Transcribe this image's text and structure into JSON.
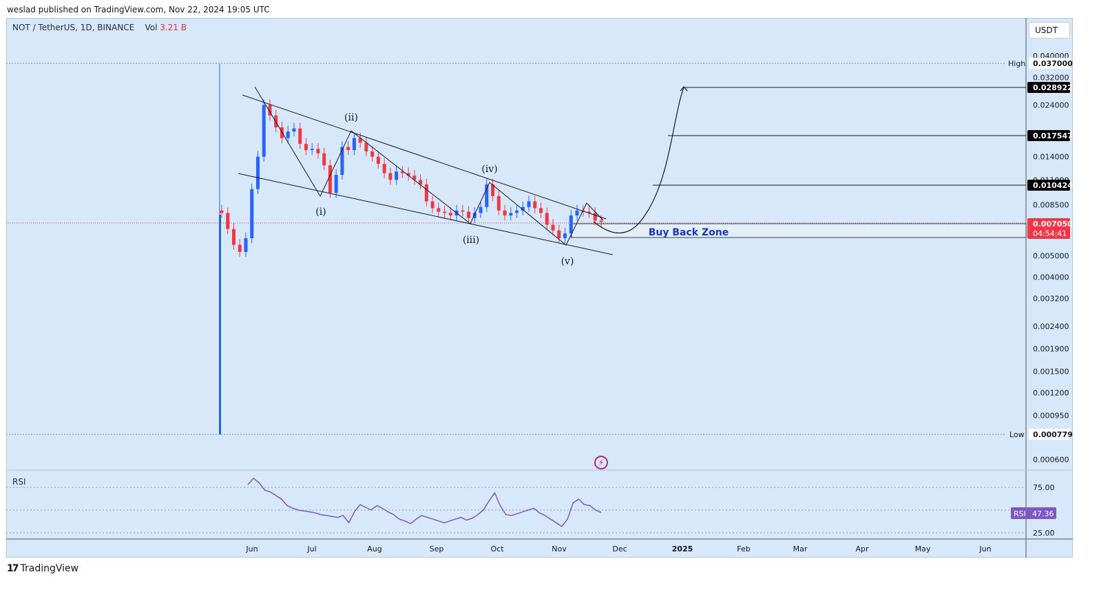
{
  "header": {
    "published": "weslad published on TradingView.com, Nov 22, 2024 19:05 UTC"
  },
  "legend": {
    "symbol": "NOT / TetherUS, 1D, BINANCE",
    "vol_label": "Vol",
    "vol_value": "3.21 B"
  },
  "unit": "USDT",
  "rsi_label": "RSI",
  "footer": {
    "logo_mark": "17",
    "brand": "TradingView"
  },
  "colors": {
    "background": "#d7e8fb",
    "up": "#2962ff",
    "down": "#f23645",
    "rsi": "#7e57c2",
    "zone_fill": "#e3eef7"
  },
  "icons": {
    "alert": "lightning-icon"
  },
  "chart_data": [
    {
      "type": "candlestick",
      "title": "NOT / TetherUS, 1D, BINANCE",
      "y_scale": "log",
      "x_tick_labels": [
        "Jun",
        "Jul",
        "Aug",
        "Sep",
        "Oct",
        "Nov",
        "Dec",
        "2025",
        "Feb",
        "Mar",
        "Apr",
        "May",
        "Jun"
      ],
      "y_tick_labels": [
        "0.040000",
        "0.032000",
        "0.024000",
        "0.014000",
        "0.011000",
        "0.008500",
        "0.005000",
        "0.004000",
        "0.003200",
        "0.002400",
        "0.001900",
        "0.001500",
        "0.001200",
        "0.000950",
        "0.000600"
      ],
      "price_tags": [
        {
          "label": "0.028922",
          "style": "black"
        },
        {
          "label": "0.017547",
          "style": "black"
        },
        {
          "label": "0.010424",
          "style": "black"
        },
        {
          "label": "0.007050",
          "style": "red"
        }
      ],
      "countdown": "04:54:41",
      "high": {
        "label": "High",
        "value": "0.037000"
      },
      "low": {
        "label": "Low",
        "value": "0.000779"
      },
      "wave_labels": [
        "(i)",
        "(ii)",
        "(iii)",
        "(iv)",
        "(v)"
      ],
      "annotation": "Buy Back Zone",
      "series": [
        {
          "close": [
            0.0078,
            0.0066,
            0.0056,
            0.0052,
            0.006,
            0.01,
            0.014,
            0.024,
            0.0215,
            0.019,
            0.017,
            0.0182,
            0.0188,
            0.016,
            0.015,
            0.0152,
            0.0145,
            0.0128,
            0.0096,
            0.0116,
            0.0155,
            0.015,
            0.017,
            0.0162,
            0.0148,
            0.014,
            0.013,
            0.0118,
            0.011,
            0.012,
            0.0118,
            0.0115,
            0.011,
            0.0105,
            0.0088,
            0.0082,
            0.0079,
            0.0078,
            0.0076,
            0.008,
            0.0079,
            0.0074,
            0.0078,
            0.0083,
            0.0105,
            0.0093,
            0.008,
            0.0076,
            0.0078,
            0.008,
            0.0083,
            0.0088,
            0.0082,
            0.0078,
            0.0069,
            0.0065,
            0.006,
            0.0063,
            0.0076,
            0.008,
            0.0079,
            0.0078,
            0.0072,
            0.0071
          ]
        }
      ]
    },
    {
      "type": "line",
      "title": "RSI",
      "value_tag": "47.36",
      "y_tick_labels": [
        "75.00",
        "25.00"
      ],
      "series": [
        {
          "name": "RSI",
          "values": [
            78,
            85,
            80,
            72,
            70,
            66,
            62,
            55,
            52,
            50,
            49,
            48,
            47,
            45,
            44,
            43,
            42,
            44,
            36,
            48,
            56,
            53,
            50,
            55,
            52,
            48,
            45,
            40,
            38,
            35,
            40,
            44,
            42,
            40,
            38,
            36,
            38,
            40,
            42,
            39,
            41,
            45,
            50,
            60,
            69,
            55,
            45,
            44,
            46,
            48,
            50,
            52,
            47,
            44,
            40,
            36,
            32,
            40,
            58,
            62,
            56,
            55,
            50,
            47.36
          ]
        }
      ]
    }
  ]
}
